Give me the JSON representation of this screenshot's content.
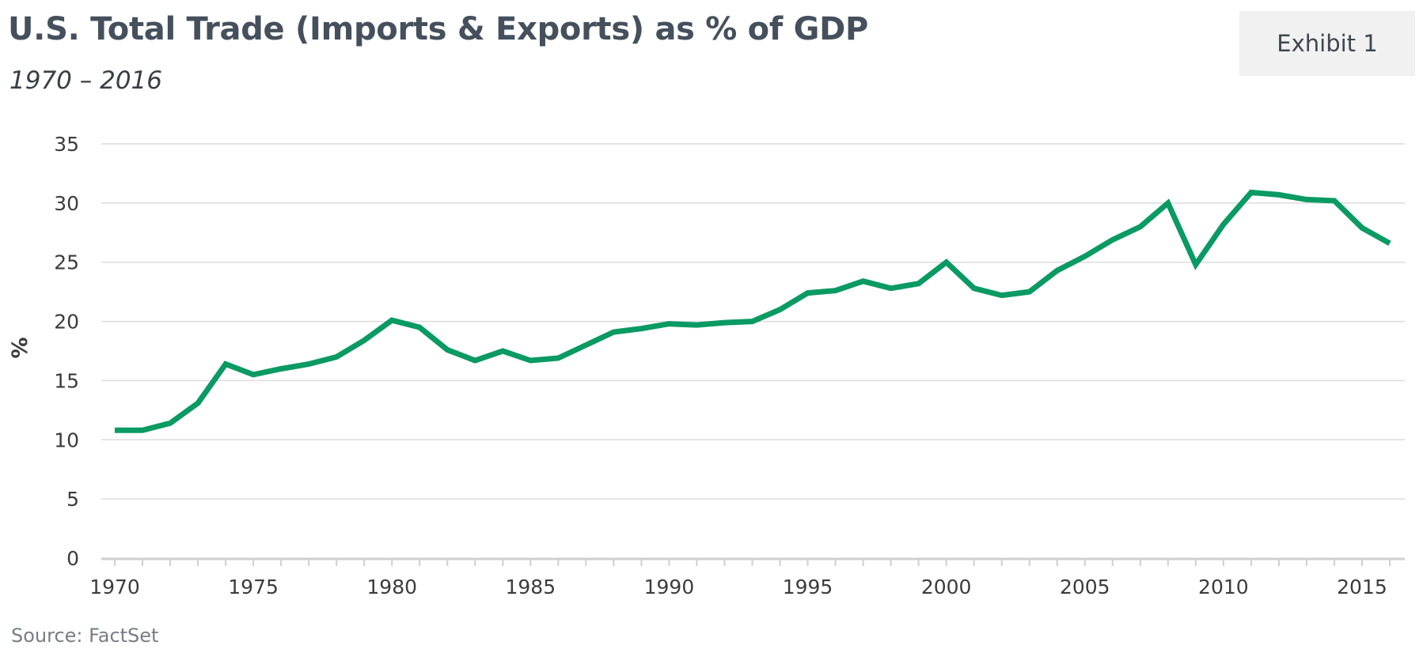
{
  "header": {
    "title": "U.S. Total Trade (Imports & Exports) as % of GDP",
    "subtitle": "1970 – 2016",
    "badge": "Exhibit 1"
  },
  "footer": {
    "source": "Source: FactSet"
  },
  "chart_data": {
    "type": "line",
    "title": "U.S. Total Trade (Imports & Exports) as % of GDP",
    "subtitle": "1970 – 2016",
    "xlabel": "",
    "ylabel": "%",
    "ylim": [
      0,
      35
    ],
    "xlim": [
      1970,
      2016
    ],
    "grid": true,
    "y_ticks": [
      0,
      5,
      10,
      15,
      20,
      25,
      30,
      35
    ],
    "x_ticks": [
      1970,
      1975,
      1980,
      1985,
      1990,
      1995,
      2000,
      2005,
      2010,
      2015
    ],
    "line_color": "#0a9a63",
    "series": [
      {
        "name": "Total Trade % of GDP",
        "x": [
          1970,
          1971,
          1972,
          1973,
          1974,
          1975,
          1976,
          1977,
          1978,
          1979,
          1980,
          1981,
          1982,
          1983,
          1984,
          1985,
          1986,
          1987,
          1988,
          1989,
          1990,
          1991,
          1992,
          1993,
          1994,
          1995,
          1996,
          1997,
          1998,
          1999,
          2000,
          2001,
          2002,
          2003,
          2004,
          2005,
          2006,
          2007,
          2008,
          2009,
          2010,
          2011,
          2012,
          2013,
          2014,
          2015,
          2016
        ],
        "values": [
          10.8,
          10.8,
          11.4,
          13.1,
          16.4,
          15.5,
          16.0,
          16.4,
          17.0,
          18.4,
          20.1,
          19.5,
          17.6,
          16.7,
          17.5,
          16.7,
          16.9,
          18.0,
          19.1,
          19.4,
          19.8,
          19.7,
          19.9,
          20.0,
          21.0,
          22.4,
          22.6,
          23.4,
          22.8,
          23.2,
          25.0,
          22.8,
          22.2,
          22.5,
          24.3,
          25.5,
          26.9,
          28.0,
          30.0,
          24.8,
          28.2,
          30.9,
          30.7,
          30.3,
          30.2,
          27.9,
          26.6
        ]
      }
    ]
  }
}
